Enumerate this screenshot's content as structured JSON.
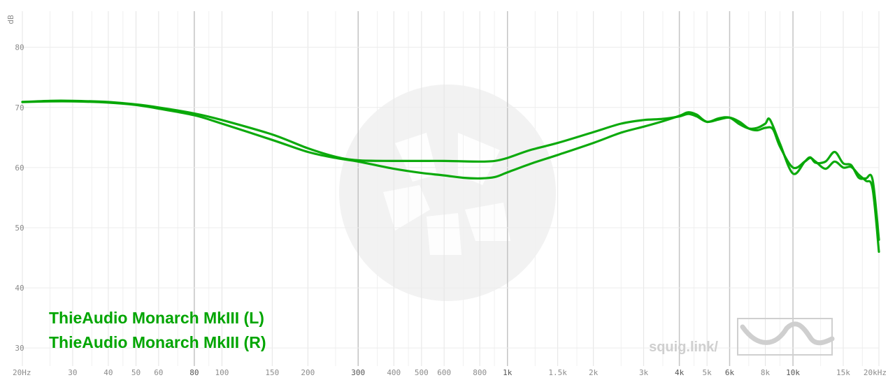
{
  "chart_data": {
    "type": "line",
    "title": "",
    "xlabel": "",
    "ylabel": "dB",
    "xscale": "log",
    "xlim": [
      20,
      20000
    ],
    "ylim": [
      27,
      86
    ],
    "grid": true,
    "legend_position": "bottom-left",
    "x_ticks": [
      {
        "value": 20,
        "label": "20Hz",
        "major": false
      },
      {
        "value": 30,
        "label": "30",
        "major": false
      },
      {
        "value": 40,
        "label": "40",
        "major": false
      },
      {
        "value": 50,
        "label": "50",
        "major": false
      },
      {
        "value": 60,
        "label": "60",
        "major": false
      },
      {
        "value": 80,
        "label": "80",
        "major": true
      },
      {
        "value": 100,
        "label": "100",
        "major": false
      },
      {
        "value": 150,
        "label": "150",
        "major": false
      },
      {
        "value": 200,
        "label": "200",
        "major": false
      },
      {
        "value": 300,
        "label": "300",
        "major": true
      },
      {
        "value": 400,
        "label": "400",
        "major": false
      },
      {
        "value": 500,
        "label": "500",
        "major": false
      },
      {
        "value": 600,
        "label": "600",
        "major": false
      },
      {
        "value": 800,
        "label": "800",
        "major": false
      },
      {
        "value": 1000,
        "label": "1k",
        "major": true
      },
      {
        "value": 1500,
        "label": "1.5k",
        "major": false
      },
      {
        "value": 2000,
        "label": "2k",
        "major": false
      },
      {
        "value": 3000,
        "label": "3k",
        "major": false
      },
      {
        "value": 4000,
        "label": "4k",
        "major": true
      },
      {
        "value": 5000,
        "label": "5k",
        "major": false
      },
      {
        "value": 6000,
        "label": "6k",
        "major": true
      },
      {
        "value": 8000,
        "label": "8k",
        "major": false
      },
      {
        "value": 10000,
        "label": "10k",
        "major": true
      },
      {
        "value": 15000,
        "label": "15k",
        "major": false
      },
      {
        "value": 20000,
        "label": "20kHz",
        "major": false
      }
    ],
    "minor_gridlines": [
      25,
      35,
      45,
      70,
      90,
      250,
      350,
      450,
      700,
      900,
      1250,
      1750,
      2500,
      3500,
      4500,
      7000,
      9000,
      12500,
      17500
    ],
    "y_ticks": [
      30,
      40,
      50,
      60,
      70,
      80
    ],
    "series": [
      {
        "name": "ThieAudio Monarch MkIII (L)",
        "color": "#00a500",
        "points": [
          [
            20,
            70.9
          ],
          [
            25,
            71.1
          ],
          [
            30,
            71.1
          ],
          [
            40,
            70.9
          ],
          [
            50,
            70.5
          ],
          [
            60,
            70.0
          ],
          [
            80,
            69.0
          ],
          [
            100,
            67.9
          ],
          [
            150,
            65.5
          ],
          [
            200,
            63.2
          ],
          [
            250,
            61.8
          ],
          [
            300,
            61.2
          ],
          [
            400,
            61.1
          ],
          [
            500,
            61.1
          ],
          [
            600,
            61.1
          ],
          [
            800,
            61.0
          ],
          [
            900,
            61.1
          ],
          [
            1000,
            61.6
          ],
          [
            1200,
            62.9
          ],
          [
            1500,
            64.1
          ],
          [
            2000,
            65.9
          ],
          [
            2500,
            67.3
          ],
          [
            3000,
            67.9
          ],
          [
            3500,
            68.1
          ],
          [
            4000,
            68.5
          ],
          [
            4300,
            68.9
          ],
          [
            4600,
            68.5
          ],
          [
            5000,
            67.6
          ],
          [
            5500,
            68.0
          ],
          [
            6000,
            68.3
          ],
          [
            6500,
            67.6
          ],
          [
            7000,
            66.5
          ],
          [
            7500,
            66.2
          ],
          [
            8000,
            66.6
          ],
          [
            8500,
            66.4
          ],
          [
            9000,
            63.5
          ],
          [
            10000,
            60.0
          ],
          [
            11000,
            61.0
          ],
          [
            11500,
            61.6
          ],
          [
            12000,
            61.0
          ],
          [
            13000,
            59.8
          ],
          [
            14000,
            61.0
          ],
          [
            15000,
            60.0
          ],
          [
            16000,
            60.1
          ],
          [
            17000,
            58.8
          ],
          [
            18000,
            57.8
          ],
          [
            19000,
            56.5
          ],
          [
            20000,
            46.0
          ]
        ]
      },
      {
        "name": "ThieAudio Monarch MkIII (R)",
        "color": "#00a500",
        "points": [
          [
            20,
            70.9
          ],
          [
            25,
            71.0
          ],
          [
            30,
            71.0
          ],
          [
            40,
            70.8
          ],
          [
            50,
            70.4
          ],
          [
            60,
            69.8
          ],
          [
            80,
            68.7
          ],
          [
            100,
            67.3
          ],
          [
            150,
            64.6
          ],
          [
            200,
            62.6
          ],
          [
            250,
            61.6
          ],
          [
            300,
            61.0
          ],
          [
            400,
            59.8
          ],
          [
            500,
            59.1
          ],
          [
            600,
            58.7
          ],
          [
            700,
            58.3
          ],
          [
            800,
            58.2
          ],
          [
            900,
            58.4
          ],
          [
            1000,
            59.2
          ],
          [
            1200,
            60.6
          ],
          [
            1500,
            62.1
          ],
          [
            2000,
            64.1
          ],
          [
            2500,
            65.8
          ],
          [
            3000,
            66.8
          ],
          [
            3500,
            67.7
          ],
          [
            4000,
            68.6
          ],
          [
            4300,
            69.2
          ],
          [
            4600,
            68.8
          ],
          [
            5000,
            67.6
          ],
          [
            5500,
            68.2
          ],
          [
            6000,
            68.3
          ],
          [
            6500,
            67.2
          ],
          [
            7000,
            66.5
          ],
          [
            7500,
            66.6
          ],
          [
            8000,
            67.3
          ],
          [
            8300,
            68.0
          ],
          [
            9000,
            64.0
          ],
          [
            10000,
            59.0
          ],
          [
            11000,
            61.0
          ],
          [
            11500,
            61.7
          ],
          [
            12000,
            60.8
          ],
          [
            13000,
            61.0
          ],
          [
            14000,
            62.6
          ],
          [
            15000,
            60.7
          ],
          [
            16000,
            60.4
          ],
          [
            17000,
            58.3
          ],
          [
            18000,
            58.2
          ],
          [
            19000,
            58.0
          ],
          [
            20000,
            48.0
          ]
        ]
      }
    ]
  },
  "legend": {
    "items": [
      "ThieAudio Monarch MkIII (L)",
      "ThieAudio Monarch MkIII (R)"
    ]
  },
  "branding": {
    "text": "squig.link/"
  }
}
